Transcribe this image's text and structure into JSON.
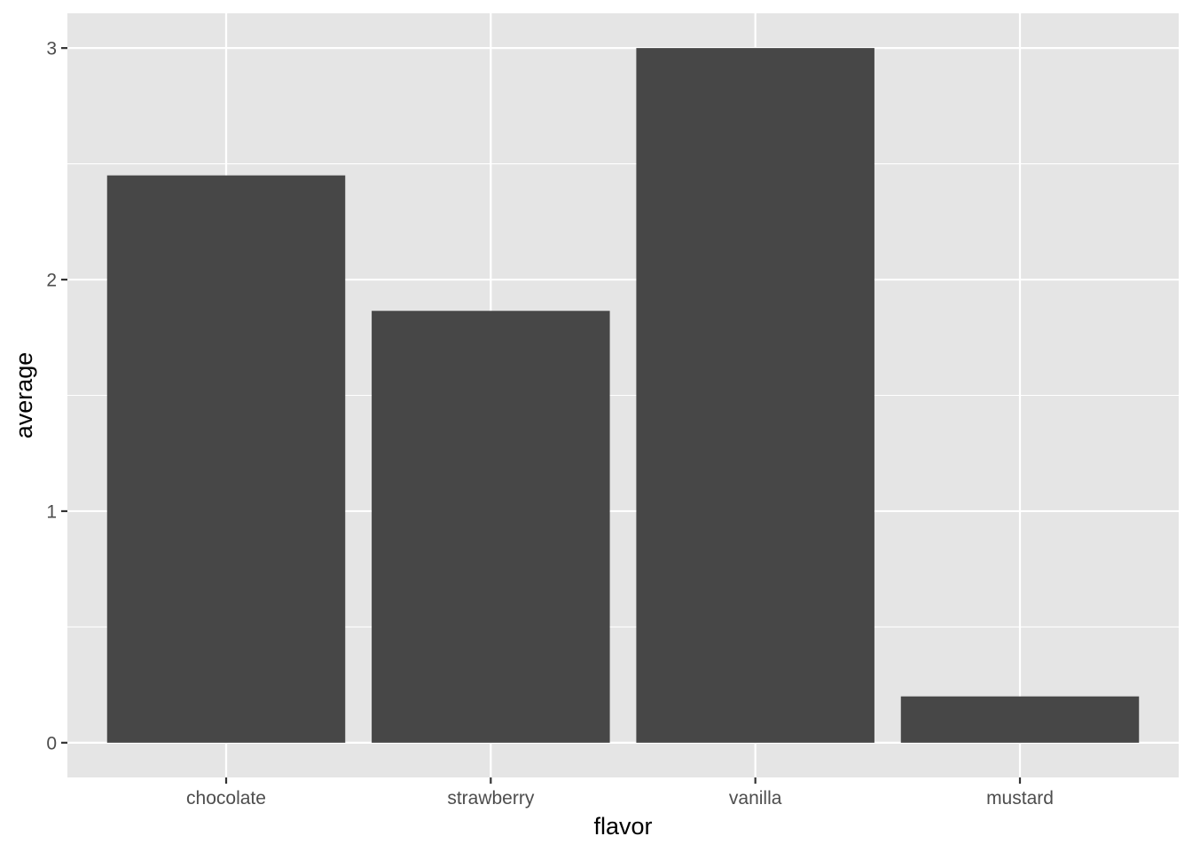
{
  "chart_data": {
    "type": "bar",
    "title": "",
    "xlabel": "flavor",
    "ylabel": "average",
    "categories": [
      "chocolate",
      "strawberry",
      "vanilla",
      "mustard"
    ],
    "values": [
      2.45,
      1.865,
      3.0,
      0.2
    ],
    "ylim": [
      -0.15,
      3.15
    ],
    "yticks": [
      0,
      1,
      2,
      3
    ],
    "yminor": [
      0.5,
      1.5,
      2.5
    ],
    "grid": true,
    "legend": "none",
    "colors": {
      "panel_background": "#e5e5e5",
      "grid_line": "#ffffff",
      "bar_fill": "#474747",
      "tick_mark": "#333333"
    }
  }
}
